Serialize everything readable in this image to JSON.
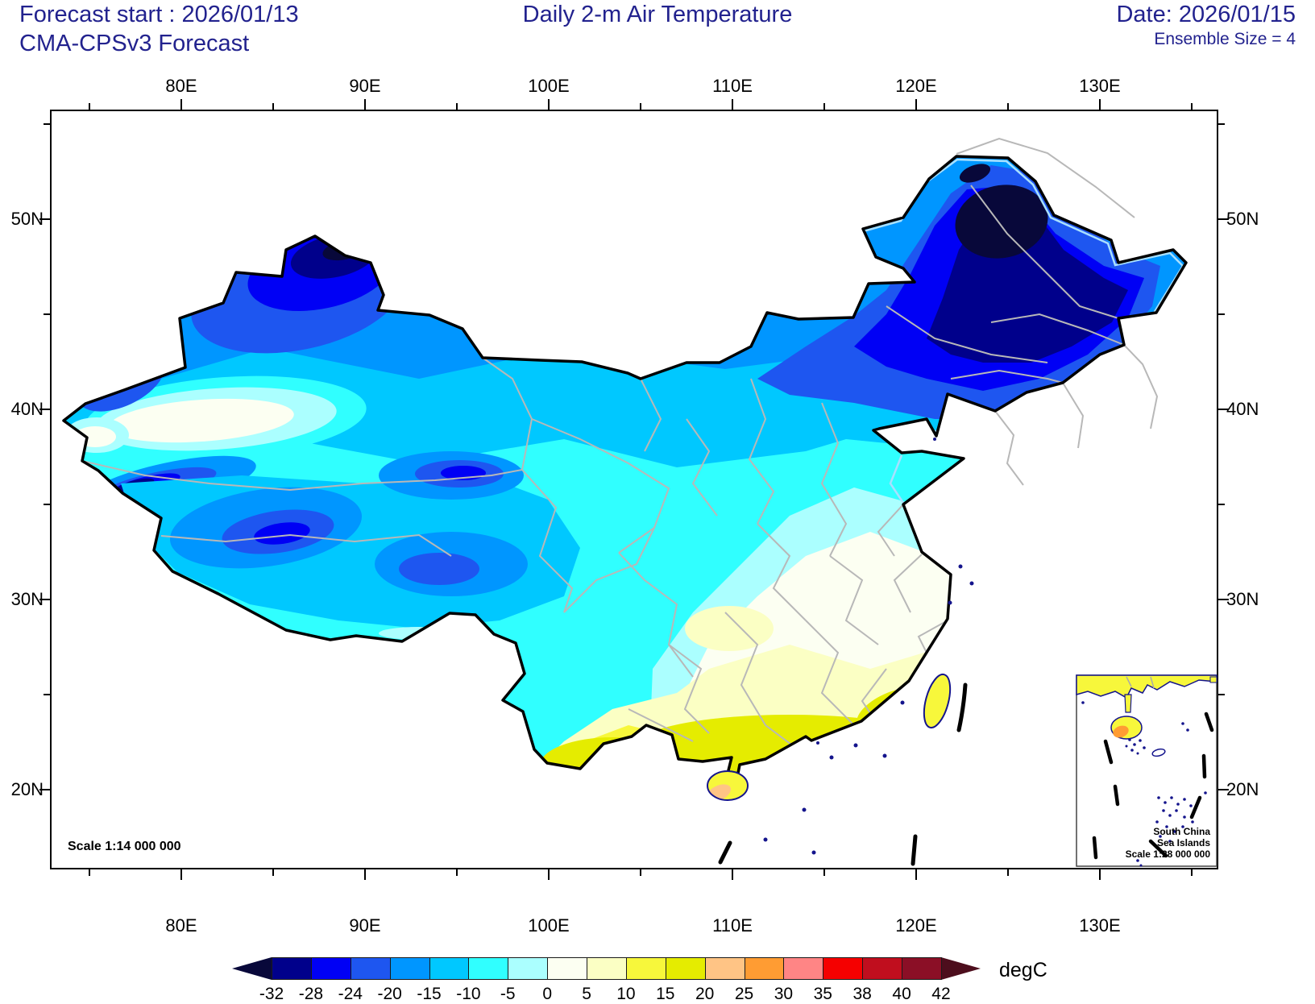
{
  "header": {
    "forecast_start": "Forecast start : 2026/01/13",
    "model": "CMA-CPSv3 Forecast",
    "title": "Daily 2-m Air Temperature",
    "date": "Date: 2026/01/15",
    "ensemble": "Ensemble Size = 4"
  },
  "axes": {
    "lon_labels": [
      "80E",
      "90E",
      "100E",
      "110E",
      "120E",
      "130E"
    ],
    "lat_labels": [
      "50N",
      "40N",
      "30N",
      "20N"
    ]
  },
  "map": {
    "scale_label": "Scale 1:14 000 000",
    "inset": {
      "line1": "South China",
      "line2": "Sea Islands",
      "line3": "Scale 1:28 000 000"
    }
  },
  "colorbar": {
    "unit": "degC",
    "tick_labels": [
      "-32",
      "-28",
      "-24",
      "-20",
      "-15",
      "-10",
      "-5",
      "0",
      "5",
      "10",
      "15",
      "20",
      "25",
      "30",
      "35",
      "38",
      "40",
      "42"
    ],
    "colors": [
      "#08083A",
      "#00008B",
      "#0000F5",
      "#1E56F0",
      "#0096FF",
      "#00C8FF",
      "#30FFFF",
      "#ABFFFF",
      "#FCFFF2",
      "#FBFFC4",
      "#F7F73B",
      "#E5EC00",
      "#FFC485",
      "#FF9C33",
      "#FF8585",
      "#F50000",
      "#C00E1E",
      "#8B0F26",
      "#4D0E1D"
    ]
  },
  "chart_data": {
    "type": "heatmap",
    "subtype": "filled-contour-weather-map",
    "title": "Daily 2-m Air Temperature",
    "region": "China",
    "model": "CMA-CPSv3",
    "forecast_start": "2026/01/13",
    "valid_date": "2026/01/15",
    "ensemble_size": 4,
    "units": "degC",
    "levels": [
      -32,
      -28,
      -24,
      -20,
      -15,
      -10,
      -5,
      0,
      5,
      10,
      15,
      20,
      25,
      30,
      35,
      38,
      40,
      42
    ],
    "palette": [
      "#08083A",
      "#00008B",
      "#0000F5",
      "#1E56F0",
      "#0096FF",
      "#00C8FF",
      "#30FFFF",
      "#ABFFFF",
      "#FCFFF2",
      "#FBFFC4",
      "#F7F73B",
      "#E5EC00",
      "#FFC485",
      "#FF9C33",
      "#FF8585",
      "#F50000",
      "#C00E1E",
      "#8B0F26",
      "#4D0E1D"
    ],
    "x_axis": {
      "ticks": [
        80,
        90,
        100,
        110,
        120,
        130
      ],
      "label_suffix": "E"
    },
    "y_axis": {
      "ticks": [
        50,
        40,
        30,
        20
      ],
      "label_suffix": "N"
    },
    "legend_position": "bottom",
    "pattern_summary": "Coldest air (below -28 degC) over northeast China and the Altai region; -10 to -28 degC across northern Xinjiang, Inner Mongolia and the Tibetan Plateau; near 0 degC in the Tarim Basin and North China Plain; 5 to 15 degC south of the Yangtze; 15-20 degC along the far southern coast, Taiwan and Hainan"
  }
}
